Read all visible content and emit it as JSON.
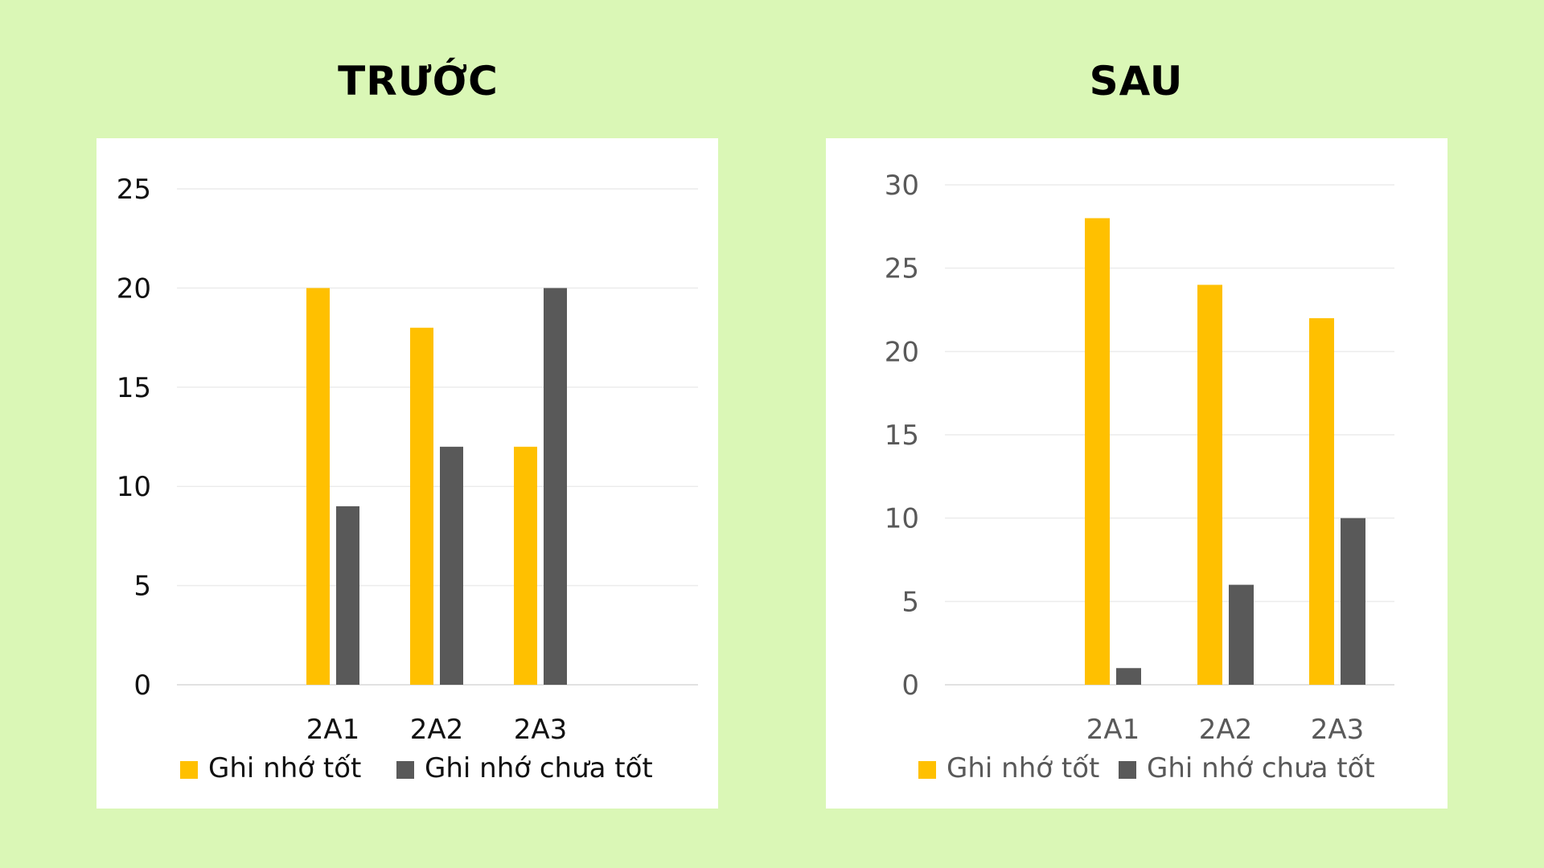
{
  "titles": {
    "left": "TRƯỚC",
    "right": "SAU"
  },
  "colors": {
    "background": "#daf7b6",
    "series_good": "#ffc000",
    "series_bad": "#595959"
  },
  "chart_data": [
    {
      "type": "bar",
      "title": "TRƯỚC",
      "categories": [
        "2A1",
        "2A2",
        "2A3"
      ],
      "series": [
        {
          "name": "Ghi nhớ tốt",
          "values": [
            20,
            18,
            12
          ],
          "color": "#ffc000"
        },
        {
          "name": "Ghi nhớ chưa tốt",
          "values": [
            9,
            12,
            20
          ],
          "color": "#595959"
        }
      ],
      "ylim": [
        0,
        25
      ],
      "yticks": [
        "0",
        "5",
        "10",
        "15",
        "20",
        "25"
      ],
      "grid": true,
      "legend": "bottom"
    },
    {
      "type": "bar",
      "title": "SAU",
      "categories": [
        "2A1",
        "2A2",
        "2A3"
      ],
      "series": [
        {
          "name": "Ghi nhớ tốt",
          "values": [
            28,
            24,
            22
          ],
          "color": "#ffc000"
        },
        {
          "name": "Ghi nhớ chưa tốt",
          "values": [
            1,
            6,
            10
          ],
          "color": "#595959"
        }
      ],
      "ylim": [
        0,
        30
      ],
      "yticks": [
        "0",
        "5",
        "10",
        "15",
        "20",
        "25",
        "30"
      ],
      "grid": true,
      "legend": "bottom"
    }
  ]
}
